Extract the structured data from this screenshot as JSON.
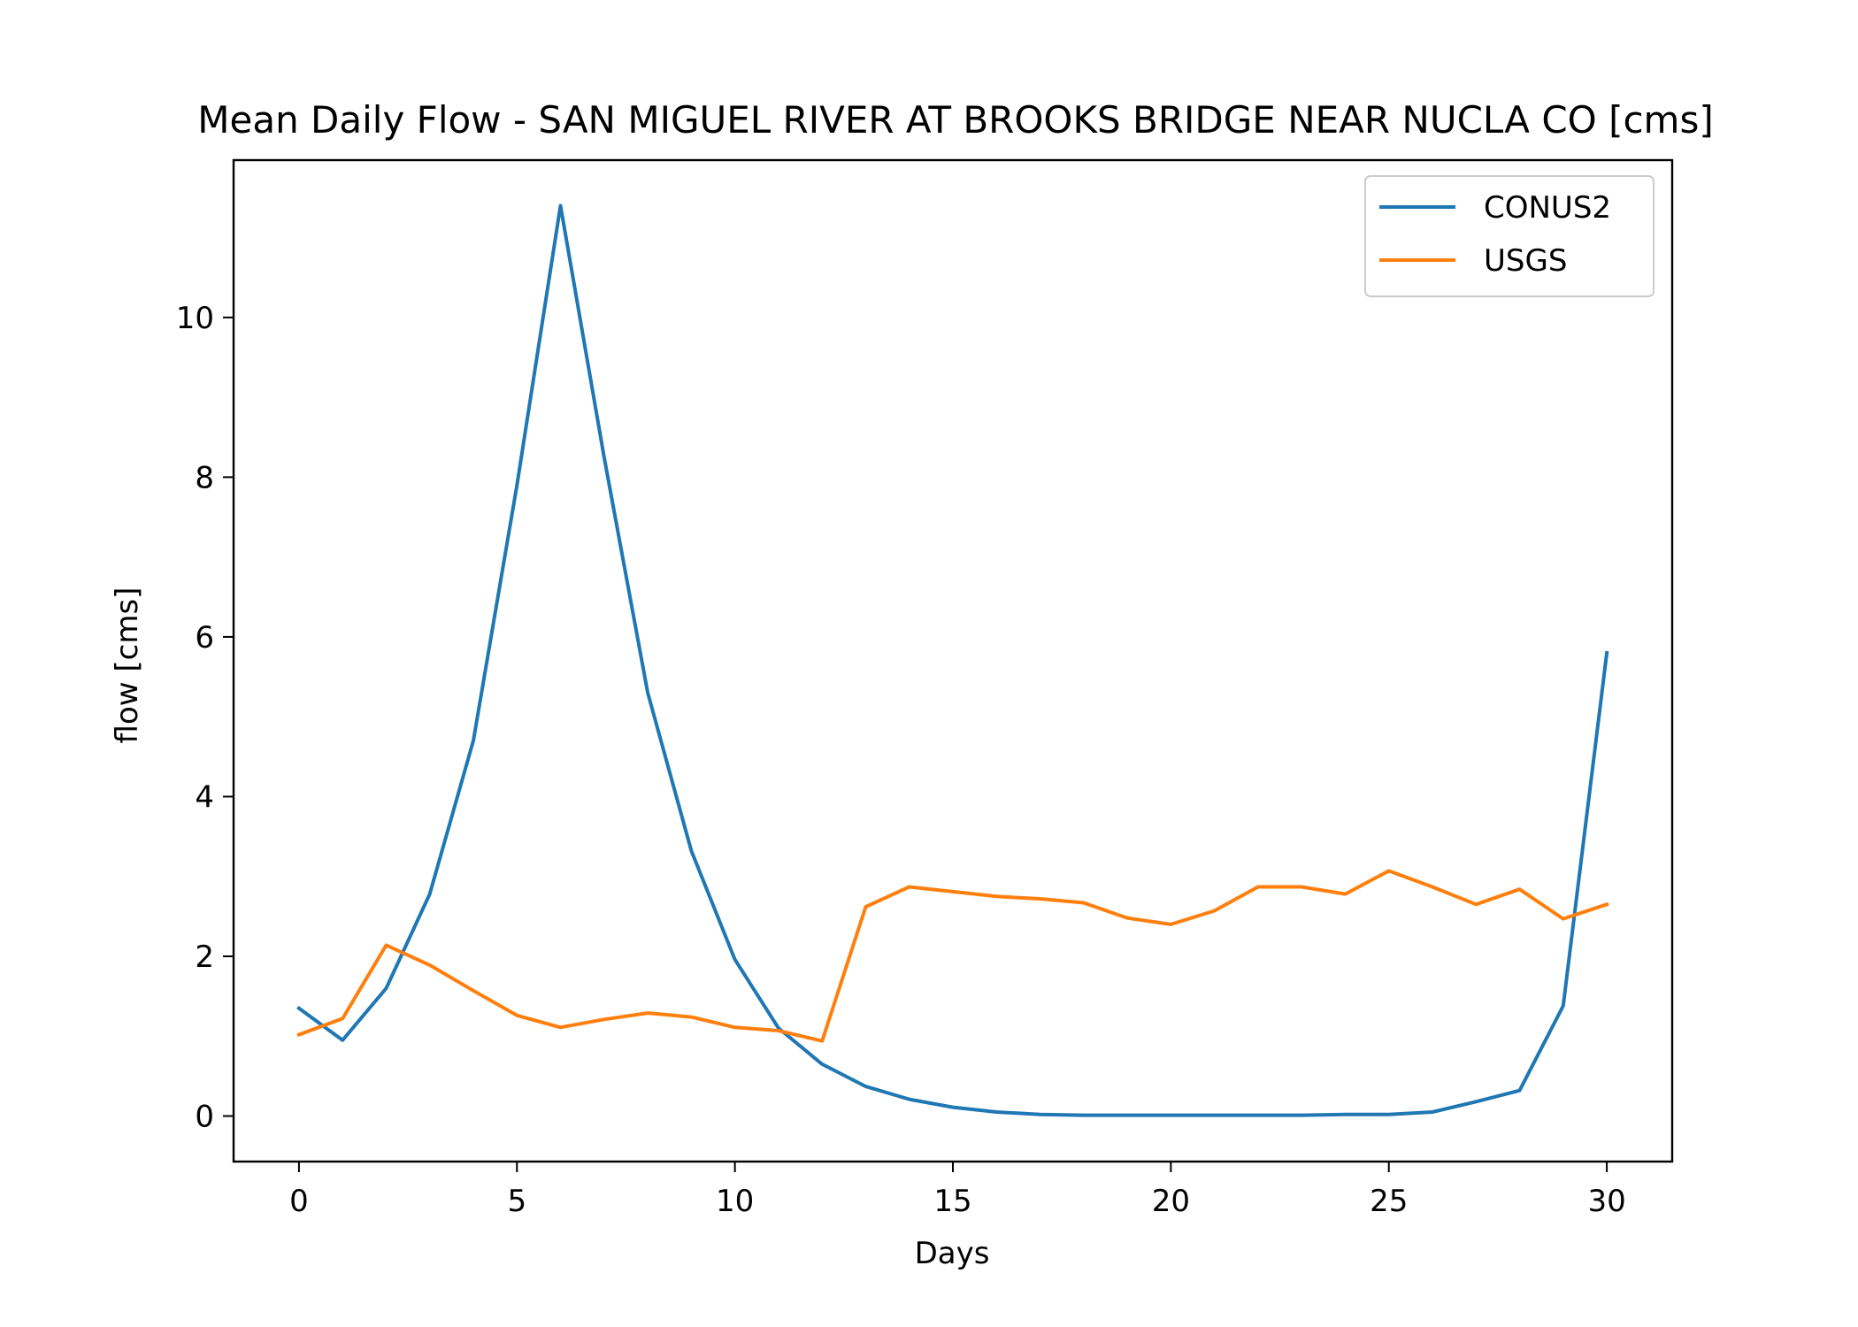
{
  "chart_data": {
    "type": "line",
    "title": "Mean Daily Flow - SAN MIGUEL RIVER AT BROOKS BRIDGE NEAR NUCLA CO [cms]",
    "xlabel": "Days",
    "ylabel": "flow [cms]",
    "xlim": [
      -1.5,
      31.5
    ],
    "ylim": [
      -0.57,
      11.97
    ],
    "xticks": [
      0,
      5,
      10,
      15,
      20,
      25,
      30
    ],
    "yticks": [
      0,
      2,
      4,
      6,
      8,
      10
    ],
    "grid": false,
    "legend_position": "top-right",
    "x": [
      0,
      1,
      2,
      3,
      4,
      5,
      6,
      7,
      8,
      9,
      10,
      11,
      12,
      13,
      14,
      15,
      16,
      17,
      18,
      19,
      20,
      21,
      22,
      23,
      24,
      25,
      26,
      27,
      28,
      29,
      30
    ],
    "series": [
      {
        "name": "CONUS2",
        "color": "#1f77b4",
        "values": [
          1.35,
          0.95,
          1.6,
          2.78,
          4.7,
          7.9,
          11.4,
          8.25,
          5.3,
          3.32,
          1.96,
          1.1,
          0.65,
          0.37,
          0.21,
          0.11,
          0.05,
          0.02,
          0.01,
          0.01,
          0.01,
          0.01,
          0.01,
          0.01,
          0.02,
          0.02,
          0.05,
          0.18,
          0.32,
          1.38,
          5.8
        ]
      },
      {
        "name": "USGS",
        "color": "#ff7f0e",
        "values": [
          1.02,
          1.22,
          2.14,
          1.89,
          1.57,
          1.26,
          1.11,
          1.21,
          1.29,
          1.24,
          1.11,
          1.07,
          0.94,
          2.62,
          2.87,
          2.81,
          2.75,
          2.72,
          2.67,
          2.48,
          2.4,
          2.57,
          2.87,
          2.87,
          2.78,
          3.07,
          2.87,
          2.65,
          2.84,
          2.47,
          2.65
        ]
      }
    ]
  }
}
